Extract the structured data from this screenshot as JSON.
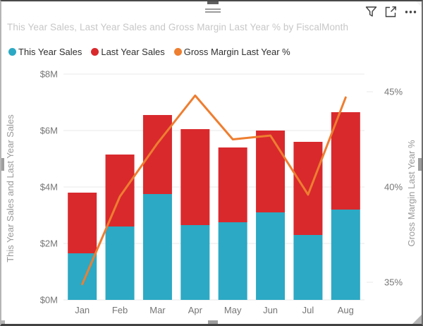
{
  "visual": {
    "title": "This Year Sales, Last Year Sales and Gross Margin Last Year % by FiscalMonth",
    "toolbar_icons": [
      "filter-icon",
      "focus-mode-icon",
      "more-options-icon"
    ]
  },
  "legend": {
    "items": [
      {
        "label": "This Year Sales",
        "color": "#2CA9C4"
      },
      {
        "label": "Last Year Sales",
        "color": "#D9292D"
      },
      {
        "label": "Gross Margin Last Year %",
        "color": "#EE7E30"
      }
    ]
  },
  "chart_data": {
    "type": "combo-line-stacked-column",
    "categories": [
      "Jan",
      "Feb",
      "Mar",
      "Apr",
      "May",
      "Jun",
      "Jul",
      "Aug"
    ],
    "series": [
      {
        "name": "This Year Sales",
        "type": "column",
        "stack_order": 0,
        "color": "#2CA9C4",
        "unit": "$M",
        "values": [
          1.65,
          2.6,
          3.75,
          2.65,
          2.75,
          3.1,
          2.3,
          3.2
        ]
      },
      {
        "name": "Last Year Sales",
        "type": "column",
        "stack_order": 1,
        "color": "#D9292D",
        "unit": "$M",
        "values": [
          2.15,
          2.55,
          2.8,
          3.4,
          2.65,
          2.9,
          3.3,
          3.45
        ]
      },
      {
        "name": "Gross Margin Last Year %",
        "type": "line",
        "color": "#EE7E30",
        "unit": "%",
        "values": [
          34.9,
          39.5,
          42.3,
          44.8,
          42.5,
          42.7,
          39.6,
          44.7
        ]
      }
    ],
    "column_axis": {
      "title": "This Year Sales and Last Year Sales",
      "range": [
        0,
        8
      ],
      "ticks": [
        {
          "label": "$0M",
          "value": 0
        },
        {
          "label": "$2M",
          "value": 2
        },
        {
          "label": "$4M",
          "value": 4
        },
        {
          "label": "$6M",
          "value": 6
        },
        {
          "label": "$8M",
          "value": 8
        }
      ]
    },
    "line_axis": {
      "title": "Gross Margin Last Year %",
      "range": [
        33.8,
        46
      ],
      "ticks": [
        {
          "label": "35%",
          "value": 35
        },
        {
          "label": "40%",
          "value": 40
        },
        {
          "label": "45%",
          "value": 45
        }
      ]
    },
    "grid": true,
    "legend_position": "top"
  }
}
